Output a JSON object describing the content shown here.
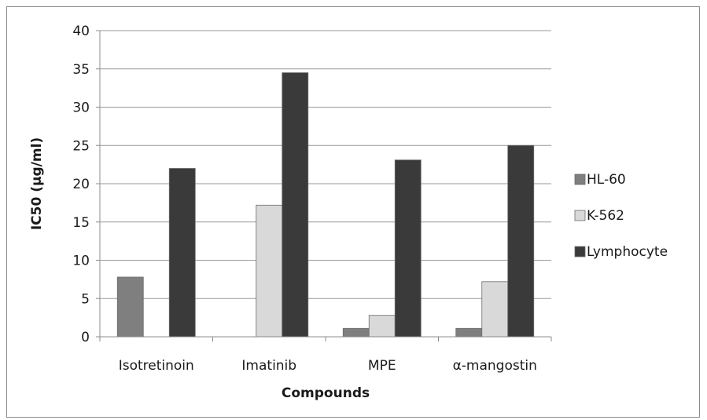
{
  "chart_data": {
    "type": "bar",
    "title": "",
    "xlabel": "Compounds",
    "ylabel": "IC50 (µg/ml)",
    "ylim": [
      0,
      40
    ],
    "yticks": [
      0,
      5,
      10,
      15,
      20,
      25,
      30,
      35,
      40
    ],
    "grid": true,
    "legend_position": "right",
    "categories": [
      "Isotretinoin",
      "Imatinib",
      "MPE",
      "α-mangostin"
    ],
    "series": [
      {
        "name": "HL-60",
        "color": "#7f7f7f",
        "values": [
          7.8,
          null,
          1.1,
          1.1
        ]
      },
      {
        "name": "K-562",
        "color": "#d9d9d9",
        "values": [
          null,
          17.2,
          2.8,
          7.2
        ]
      },
      {
        "name": "Lymphocyte",
        "color": "#3a3a3a",
        "values": [
          22.0,
          34.5,
          23.1,
          25.0
        ]
      }
    ]
  }
}
